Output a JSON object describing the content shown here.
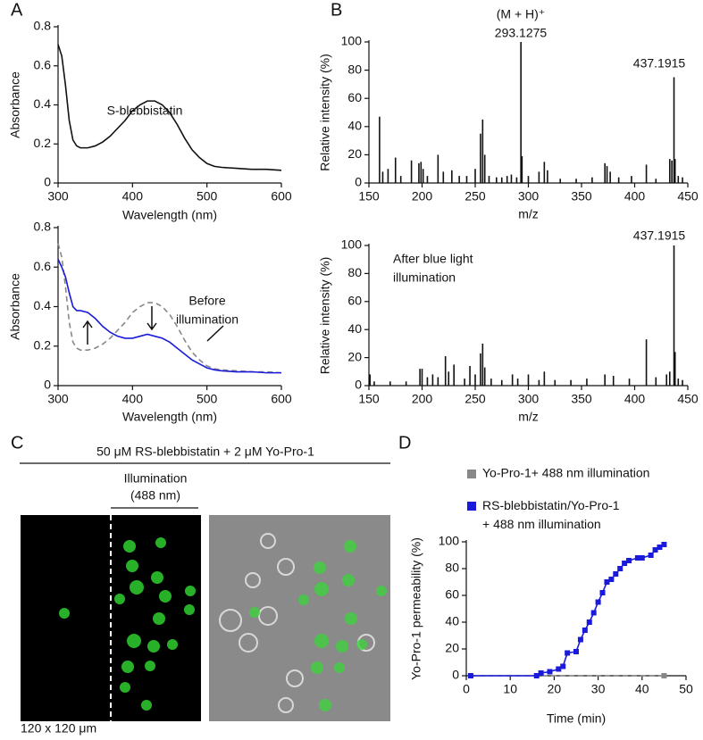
{
  "panel_labels": [
    "A",
    "B",
    "C",
    "D"
  ],
  "panel_c": {
    "title": "50 μM RS-blebbistatin + 2 μM Yo-Pro-1",
    "illumination": [
      "Illumination",
      "(488 nm)"
    ],
    "scale": "120 x 120 μm"
  },
  "chart_data": [
    {
      "type": "line",
      "xlabel": "Wavelength (nm)",
      "ylabel": "Absorbance",
      "x": [
        300,
        305,
        310,
        315,
        320,
        325,
        330,
        340,
        350,
        360,
        370,
        380,
        390,
        400,
        410,
        420,
        430,
        440,
        450,
        460,
        470,
        480,
        490,
        500,
        510,
        520,
        540,
        560,
        580,
        600
      ],
      "series": [
        {
          "color": "#111111",
          "linestyle": "solid",
          "values": [
            0.71,
            0.65,
            0.5,
            0.32,
            0.22,
            0.19,
            0.18,
            0.18,
            0.19,
            0.21,
            0.24,
            0.28,
            0.32,
            0.37,
            0.4,
            0.42,
            0.42,
            0.4,
            0.36,
            0.3,
            0.23,
            0.17,
            0.13,
            0.1,
            0.085,
            0.08,
            0.075,
            0.07,
            0.07,
            0.065
          ]
        }
      ],
      "xlim": [
        300,
        600
      ],
      "xticks": [
        300,
        400,
        500,
        600
      ],
      "ylim": [
        0,
        0.8
      ],
      "yticks": [
        0,
        0.2,
        0.4,
        0.6,
        0.8
      ],
      "annotations": [
        "S-blebbistatin"
      ]
    },
    {
      "type": "line",
      "xlabel": "Wavelength (nm)",
      "ylabel": "Absorbance",
      "x": [
        300,
        305,
        310,
        315,
        320,
        325,
        330,
        340,
        350,
        360,
        370,
        380,
        390,
        400,
        410,
        420,
        430,
        440,
        450,
        460,
        470,
        480,
        490,
        500,
        510,
        520,
        540,
        560,
        580,
        600
      ],
      "series": [
        {
          "color": "#888888",
          "linestyle": "dashed",
          "values": [
            0.72,
            0.65,
            0.5,
            0.32,
            0.22,
            0.19,
            0.18,
            0.18,
            0.19,
            0.21,
            0.24,
            0.28,
            0.32,
            0.37,
            0.4,
            0.42,
            0.42,
            0.4,
            0.36,
            0.3,
            0.23,
            0.17,
            0.13,
            0.1,
            0.085,
            0.08,
            0.075,
            0.07,
            0.07,
            0.065
          ]
        },
        {
          "color": "#1a1adb",
          "linestyle": "solid",
          "values": [
            0.64,
            0.6,
            0.55,
            0.47,
            0.4,
            0.38,
            0.38,
            0.37,
            0.34,
            0.3,
            0.27,
            0.25,
            0.24,
            0.24,
            0.25,
            0.26,
            0.25,
            0.24,
            0.22,
            0.19,
            0.16,
            0.13,
            0.11,
            0.09,
            0.08,
            0.075,
            0.07,
            0.07,
            0.065,
            0.065
          ]
        }
      ],
      "xlim": [
        300,
        600
      ],
      "xticks": [
        300,
        400,
        500,
        600
      ],
      "ylim": [
        0,
        0.8
      ],
      "yticks": [
        0,
        0.2,
        0.4,
        0.6,
        0.8
      ],
      "annotations": [
        "Before",
        "illumination"
      ]
    },
    {
      "type": "bar",
      "xlabel": "m/z",
      "ylabel": "Relative intensity (%)",
      "color": "#111111",
      "x": [
        160,
        163,
        168,
        175,
        180,
        190,
        197,
        199,
        201,
        205,
        215,
        220,
        228,
        235,
        242,
        250,
        255,
        257,
        259,
        263,
        270,
        275,
        280,
        284,
        289,
        293,
        294,
        300,
        310,
        315,
        318,
        330,
        345,
        360,
        372,
        374,
        377,
        385,
        397,
        411,
        420,
        433,
        435,
        437,
        438,
        441,
        445
      ],
      "values": [
        47,
        8,
        10,
        18,
        5,
        16,
        14,
        15,
        10,
        5,
        20,
        8,
        9,
        5,
        5,
        10,
        35,
        45,
        20,
        5,
        4,
        4,
        5,
        6,
        4,
        100,
        19,
        5,
        8,
        15,
        9,
        3,
        3,
        4,
        14,
        12,
        8,
        4,
        5,
        13,
        3,
        17,
        16,
        75,
        17,
        5,
        4
      ],
      "xlim": [
        150,
        450
      ],
      "xticks": [
        150,
        200,
        250,
        300,
        350,
        400,
        450
      ],
      "ylim": [
        0,
        100
      ],
      "yticks": [
        0,
        20,
        40,
        60,
        80,
        100
      ],
      "annotations": [
        "(M + H)⁺",
        "293.1275",
        "437.1915"
      ]
    },
    {
      "type": "bar",
      "xlabel": "m/z",
      "ylabel": "Relative intensity (%)",
      "color": "#111111",
      "x": [
        151,
        155,
        170,
        185,
        198,
        200,
        205,
        210,
        215,
        222,
        225,
        230,
        240,
        245,
        250,
        255,
        257,
        259,
        265,
        275,
        285,
        290,
        300,
        310,
        315,
        325,
        340,
        355,
        372,
        380,
        395,
        411,
        420,
        430,
        433,
        437,
        438,
        441,
        445
      ],
      "values": [
        8,
        3,
        3,
        3,
        12,
        12,
        6,
        8,
        6,
        21,
        10,
        15,
        5,
        14,
        8,
        23,
        30,
        13,
        5,
        4,
        8,
        5,
        8,
        4,
        10,
        4,
        4,
        5,
        8,
        7,
        5,
        33,
        6,
        8,
        10,
        100,
        24,
        5,
        4
      ],
      "xlim": [
        150,
        450
      ],
      "xticks": [
        150,
        200,
        250,
        300,
        350,
        400,
        450
      ],
      "ylim": [
        0,
        100
      ],
      "yticks": [
        0,
        20,
        40,
        60,
        80,
        100
      ],
      "annotations": [
        "After blue light",
        "illumination",
        "437.1915"
      ]
    },
    {
      "type": "line",
      "xlabel": "Time (min)",
      "ylabel": "Yo-Pro-1 permeability (%)",
      "series": [
        {
          "name": "Yo-Pro-1+ 488 nm illumination",
          "color": "#888888",
          "linestyle": "dashed",
          "marker": "square",
          "x": [
            1,
            45
          ],
          "values": [
            0,
            0
          ]
        },
        {
          "name": "RS-blebbistatin/Yo-Pro-1 + 488 nm illumination",
          "color": "#1a1adb",
          "linestyle": "solid",
          "marker": "square",
          "x": [
            1,
            16,
            17,
            19,
            21,
            22,
            23,
            25,
            26,
            27,
            28,
            29,
            30,
            31,
            32,
            33,
            34,
            35,
            36,
            37,
            39,
            40,
            42,
            43,
            44,
            45
          ],
          "values": [
            0,
            0,
            2,
            3,
            5,
            7,
            17,
            18,
            27,
            34,
            40,
            47,
            55,
            62,
            70,
            72,
            76,
            80,
            84,
            86,
            88,
            88,
            90,
            94,
            96,
            98
          ]
        }
      ],
      "xlim": [
        0,
        50
      ],
      "xticks": [
        0,
        10,
        20,
        30,
        40,
        50
      ],
      "ylim": [
        0,
        100
      ],
      "yticks": [
        0,
        20,
        40,
        60,
        80,
        100
      ]
    }
  ]
}
